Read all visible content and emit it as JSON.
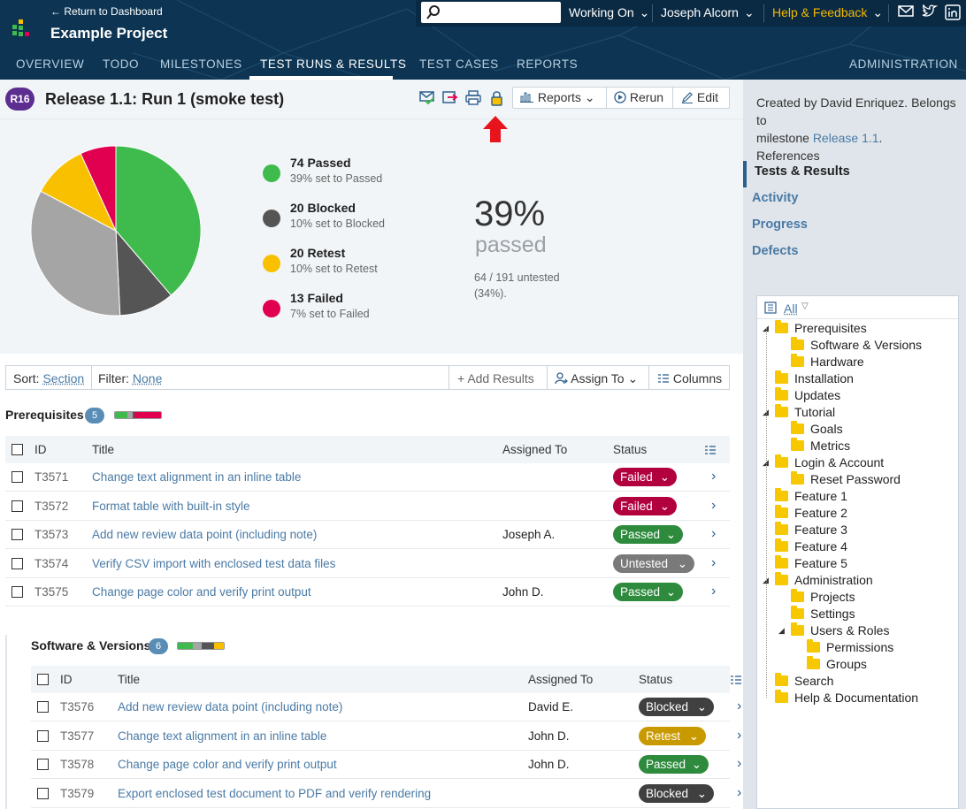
{
  "header": {
    "return_link": "← Return to Dashboard",
    "project_title": "Example Project",
    "working_on": "Working On",
    "user": "Joseph Alcorn",
    "help": "Help & Feedback"
  },
  "nav": {
    "tabs": [
      "OVERVIEW",
      "TODO",
      "MILESTONES",
      "TEST RUNS & RESULTS",
      "TEST CASES",
      "REPORTS"
    ],
    "admin": "ADMINISTRATION",
    "active_index": 3
  },
  "run": {
    "badge": "R16",
    "title": "Release 1.1: Run 1 (smoke test)",
    "reports_label": "Reports",
    "rerun_label": "Rerun",
    "edit_label": "Edit"
  },
  "summary": {
    "legend": [
      {
        "title": "74 Passed",
        "sub": "39% set to Passed",
        "color": "#3fbb4e"
      },
      {
        "title": "20 Blocked",
        "sub": "10% set to Blocked",
        "color": "#555555"
      },
      {
        "title": "20 Retest",
        "sub": "10% set to Retest",
        "color": "#f9c000"
      },
      {
        "title": "13 Failed",
        "sub": "7% set to Failed",
        "color": "#e0004f"
      }
    ],
    "percent": "39%",
    "percent_label": "passed",
    "untested_line1": "64 / 191 untested",
    "untested_line2": "(34%)."
  },
  "chart_data": {
    "type": "pie",
    "categories": [
      "Passed",
      "Blocked",
      "Untested",
      "Retest",
      "Failed"
    ],
    "values": [
      74,
      20,
      64,
      20,
      13
    ],
    "colors": [
      "#3fbb4e",
      "#555555",
      "#a5a5a5",
      "#f9c000",
      "#e0004f"
    ]
  },
  "toolbar": {
    "sort_label": "Sort:",
    "sort_value": "Section",
    "filter_label": "Filter:",
    "filter_value": "None",
    "add_results": "Add Results",
    "assign_to": "Assign To",
    "columns": "Columns"
  },
  "columns": {
    "id": "ID",
    "title": "Title",
    "assigned": "Assigned To",
    "status": "Status"
  },
  "sections": [
    {
      "title": "Prerequisites",
      "count": "5",
      "rows": [
        {
          "id": "T3571",
          "title": "Change text alignment in an inline table",
          "assigned": "",
          "status": "Failed"
        },
        {
          "id": "T3572",
          "title": "Format table with built-in style",
          "assigned": "",
          "status": "Failed"
        },
        {
          "id": "T3573",
          "title": "Add new review data point (including note)",
          "assigned": "Joseph A.",
          "status": "Passed"
        },
        {
          "id": "T3574",
          "title": "Verify CSV import with enclosed test data files",
          "assigned": "",
          "status": "Untested"
        },
        {
          "id": "T3575",
          "title": "Change page color and verify print output",
          "assigned": "John D.",
          "status": "Passed"
        }
      ]
    },
    {
      "title": "Software & Versions",
      "count": "6",
      "rows": [
        {
          "id": "T3576",
          "title": "Add new review data point (including note)",
          "assigned": "David E.",
          "status": "Blocked"
        },
        {
          "id": "T3577",
          "title": "Change text alignment in an inline table",
          "assigned": "John D.",
          "status": "Retest"
        },
        {
          "id": "T3578",
          "title": "Change page color and verify print output",
          "assigned": "John D.",
          "status": "Passed"
        },
        {
          "id": "T3579",
          "title": "Export enclosed test document to PDF and verify rendering",
          "assigned": "",
          "status": "Blocked"
        }
      ]
    }
  ],
  "status_colors": {
    "Failed": "#b2003f",
    "Passed": "#2e8b3e",
    "Untested": "#7a7a7a",
    "Blocked": "#404040",
    "Retest": "#c99a00"
  },
  "sidebar": {
    "info_line1": "Created by David Enriquez. Belongs to",
    "info_line2a": "milestone",
    "info_milestone": "Release 1.1",
    "info_line3": "References",
    "nav": [
      "Tests & Results",
      "Activity",
      "Progress",
      "Defects"
    ],
    "tree_all": "All",
    "tree": [
      {
        "label": "Prerequisites",
        "level": 0,
        "exp": true
      },
      {
        "label": "Software & Versions",
        "level": 1
      },
      {
        "label": "Hardware",
        "level": 1
      },
      {
        "label": "Installation",
        "level": 0
      },
      {
        "label": "Updates",
        "level": 0
      },
      {
        "label": "Tutorial",
        "level": 0,
        "exp": true
      },
      {
        "label": "Goals",
        "level": 1
      },
      {
        "label": "Metrics",
        "level": 1
      },
      {
        "label": "Login & Account",
        "level": 0,
        "exp": true
      },
      {
        "label": "Reset Password",
        "level": 1
      },
      {
        "label": "Feature 1",
        "level": 0
      },
      {
        "label": "Feature 2",
        "level": 0
      },
      {
        "label": "Feature 3",
        "level": 0
      },
      {
        "label": "Feature 4",
        "level": 0
      },
      {
        "label": "Feature 5",
        "level": 0
      },
      {
        "label": "Administration",
        "level": 0,
        "exp": true
      },
      {
        "label": "Projects",
        "level": 1
      },
      {
        "label": "Settings",
        "level": 1
      },
      {
        "label": "Users & Roles",
        "level": 1,
        "exp": true
      },
      {
        "label": "Permissions",
        "level": 2
      },
      {
        "label": "Groups",
        "level": 2
      },
      {
        "label": "Search",
        "level": 0
      },
      {
        "label": "Help & Documentation",
        "level": 0
      }
    ]
  }
}
